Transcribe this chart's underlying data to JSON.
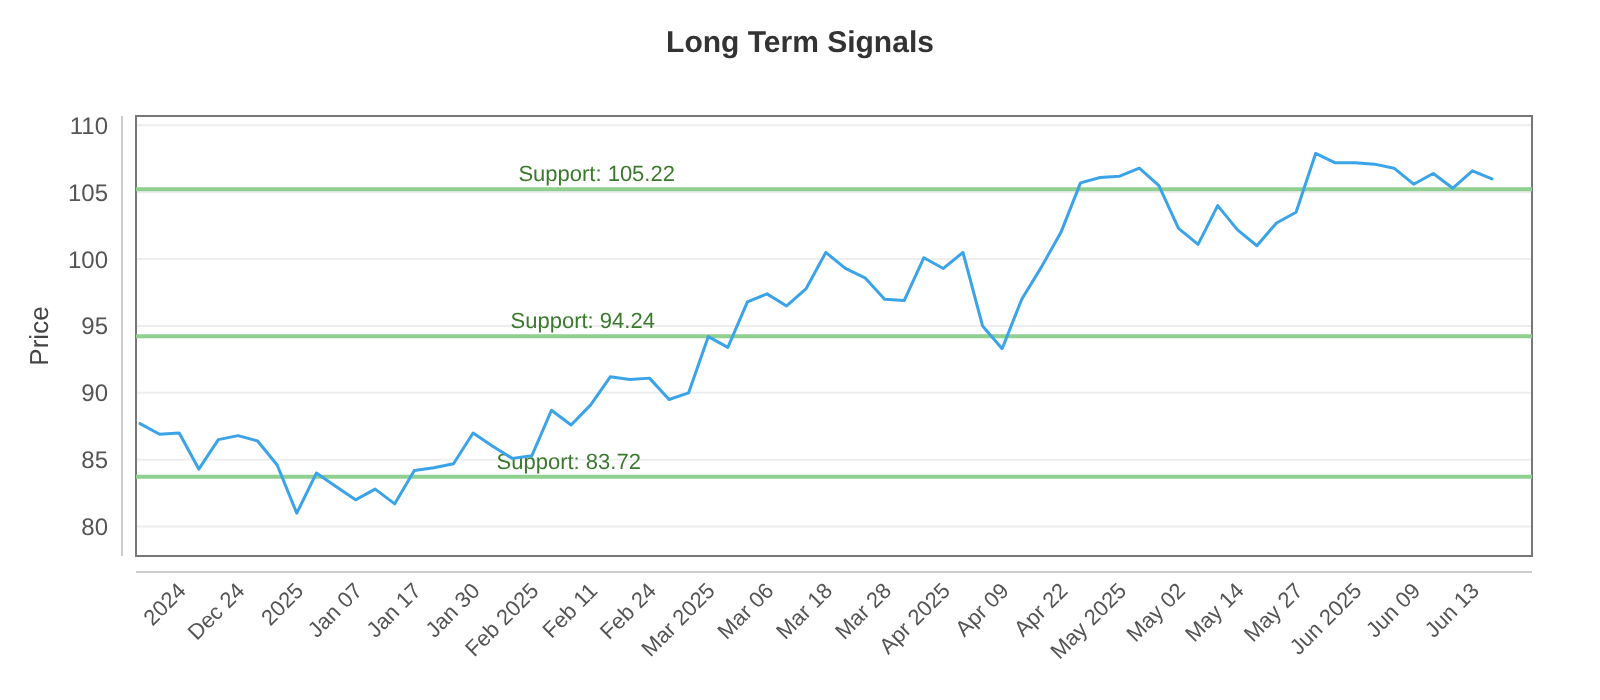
{
  "chart_data": {
    "type": "line",
    "title": "Long Term Signals",
    "ylabel": "Price",
    "categories": [
      null,
      null,
      "2024",
      null,
      null,
      "Dec 24",
      null,
      null,
      "2025",
      null,
      null,
      "Jan 07",
      null,
      null,
      "Jan 17",
      null,
      null,
      "Jan 30",
      null,
      null,
      "Feb 2025",
      null,
      null,
      "Feb 11",
      null,
      null,
      "Feb 24",
      null,
      null,
      "Mar 2025",
      null,
      null,
      "Mar 06",
      null,
      null,
      "Mar 18",
      null,
      null,
      "Mar 28",
      null,
      null,
      "Apr 2025",
      null,
      null,
      "Apr 09",
      null,
      null,
      "Apr 22",
      null,
      null,
      "May 2025",
      null,
      null,
      "May 02",
      null,
      null,
      "May 14",
      null,
      null,
      "May 27",
      null,
      null,
      "Jun 2025",
      null,
      null,
      "Jun 09",
      null,
      null,
      "Jun 13",
      null
    ],
    "series": [
      {
        "color": "#3ba3e8",
        "values": [
          87.7,
          86.9,
          87.0,
          84.3,
          86.5,
          86.8,
          86.4,
          84.6,
          81.0,
          84.0,
          83.0,
          82.0,
          82.8,
          81.7,
          84.2,
          84.4,
          84.7,
          87.0,
          86.0,
          85.1,
          85.3,
          88.7,
          87.6,
          89.1,
          91.2,
          91.0,
          91.1,
          89.5,
          90.0,
          94.2,
          93.4,
          96.8,
          97.4,
          96.5,
          97.8,
          100.5,
          99.3,
          98.6,
          97.0,
          96.9,
          100.1,
          99.3,
          100.5,
          95.0,
          93.3,
          97.0,
          99.4,
          102.0,
          105.7,
          106.1,
          106.2,
          106.8,
          105.5,
          102.3,
          101.1,
          104.0,
          102.2,
          101.0,
          102.7,
          103.5,
          107.9,
          107.2,
          107.2,
          107.1,
          106.8,
          105.6,
          106.4,
          105.3,
          106.6,
          106.0
        ]
      }
    ],
    "ylim": [
      77.8,
      110.7
    ],
    "yticks": [
      80,
      85,
      90,
      95,
      100,
      105,
      110
    ],
    "grid": "y",
    "line_style": "solid",
    "marker": "none",
    "ref_lines": [
      {
        "axis": "y",
        "value": 105.22,
        "label": "Support: 105.22",
        "color": "#8fcf8f"
      },
      {
        "axis": "y",
        "value": 94.24,
        "label": "Support: 94.24",
        "color": "#8fcf8f"
      },
      {
        "axis": "y",
        "value": 83.72,
        "label": "Support: 83.72",
        "color": "#8fcf8f"
      }
    ]
  }
}
